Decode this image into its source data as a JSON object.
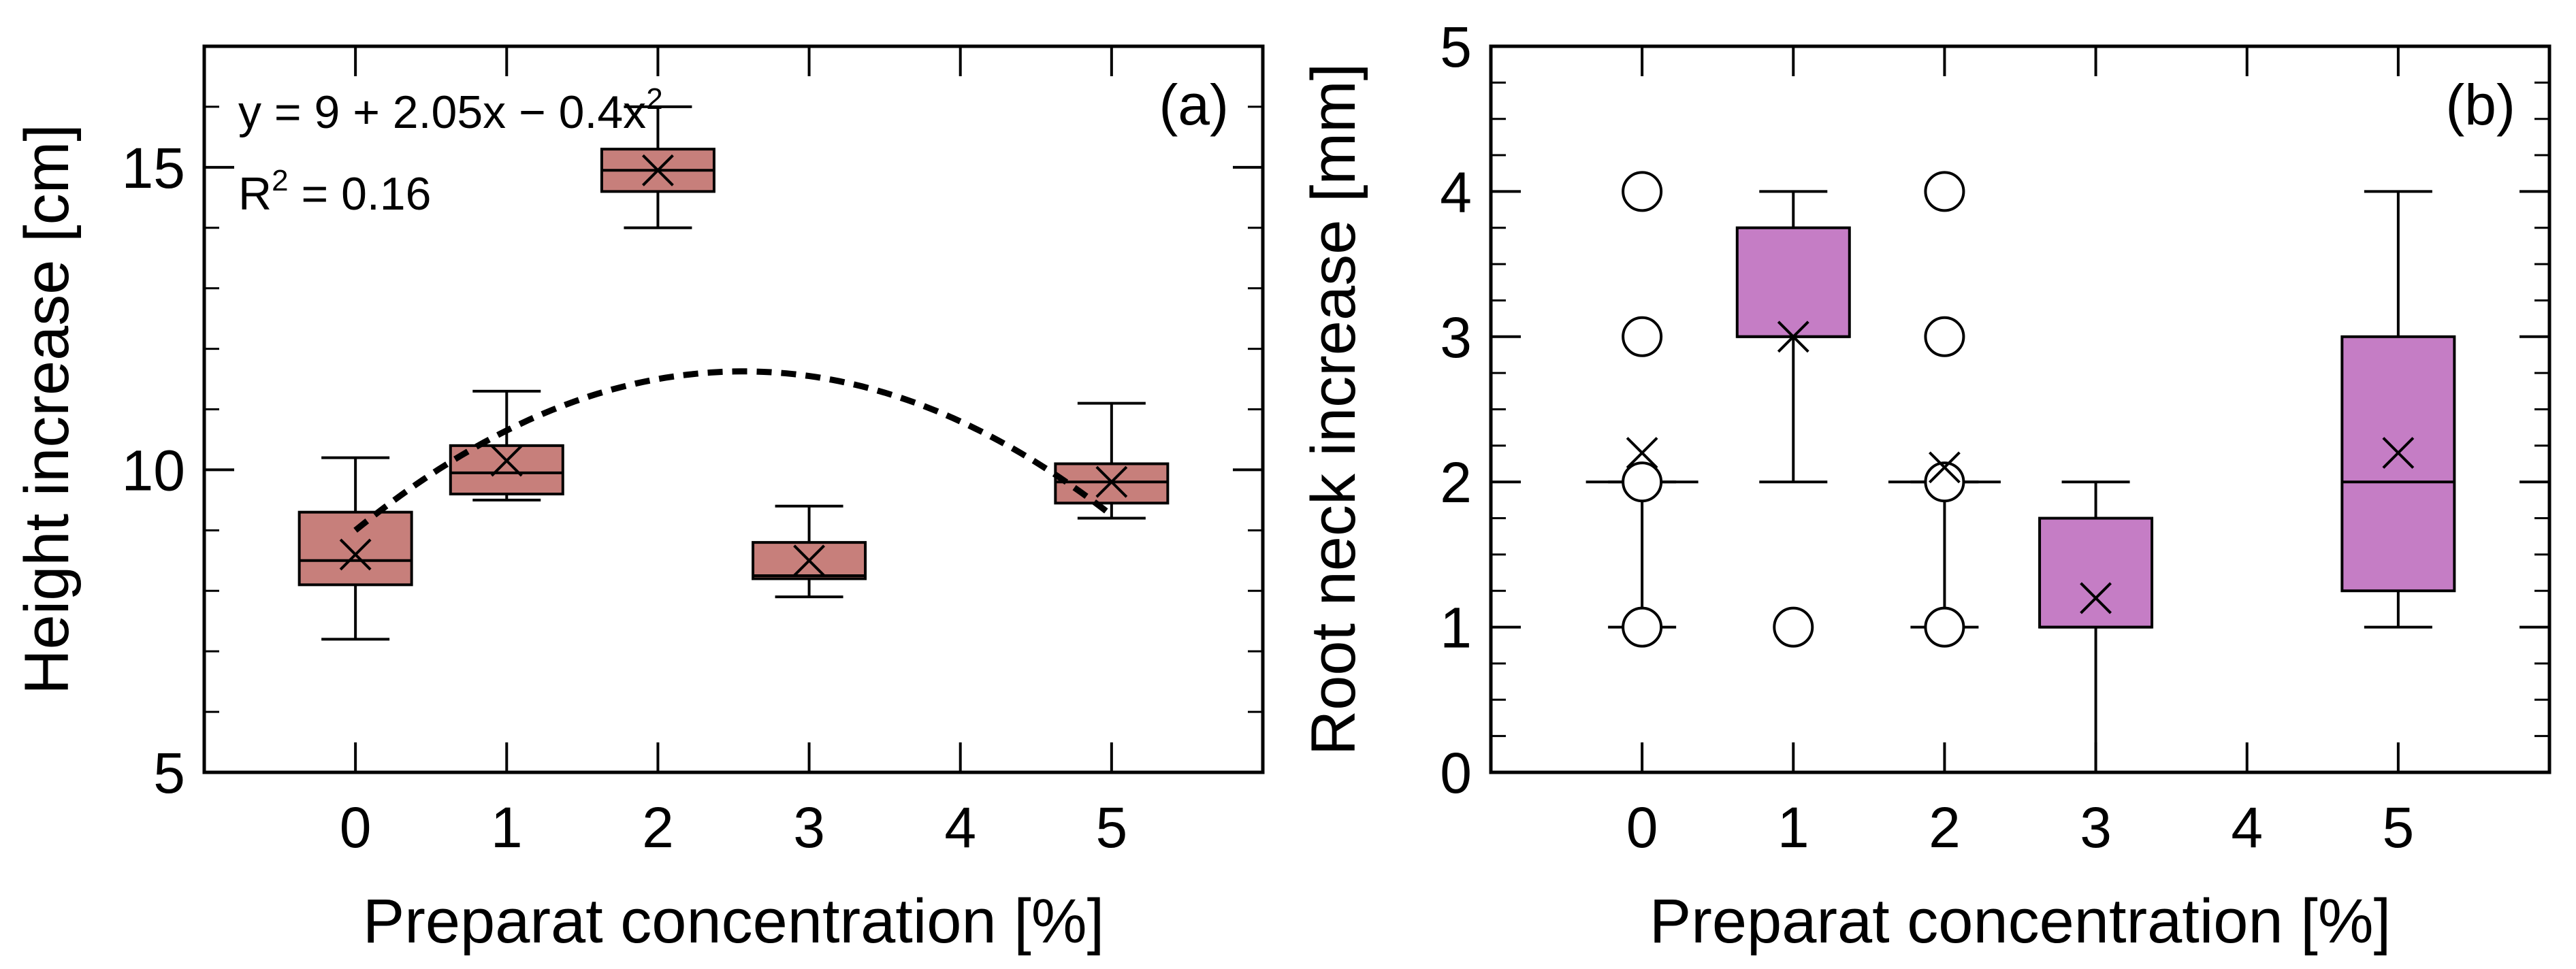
{
  "chart_data": [
    {
      "type": "box",
      "panel_label": "(a)",
      "xlabel": "Preparat concentration [%]",
      "ylabel": "Height increase [cm]",
      "xlim": [
        -1,
        6
      ],
      "ylim": [
        5,
        17
      ],
      "x_ticks": [
        0,
        1,
        2,
        3,
        4,
        5
      ],
      "y_ticks": [
        5,
        10,
        15
      ],
      "box_color": "#c77f7b",
      "boxes": [
        {
          "x": 0,
          "whisker_low": 7.2,
          "q1": 8.1,
          "median": 8.5,
          "q3": 9.3,
          "whisker_high": 10.2,
          "mean": 8.6,
          "outliers": []
        },
        {
          "x": 1,
          "whisker_low": 9.5,
          "q1": 9.6,
          "median": 9.95,
          "q3": 10.4,
          "whisker_high": 11.3,
          "mean": 10.15,
          "outliers": []
        },
        {
          "x": 2,
          "whisker_low": 14.0,
          "q1": 14.6,
          "median": 14.95,
          "q3": 15.3,
          "whisker_high": 16.0,
          "mean": 14.95,
          "outliers": []
        },
        {
          "x": 3,
          "whisker_low": 7.9,
          "q1": 8.2,
          "median": 8.25,
          "q3": 8.8,
          "whisker_high": 9.4,
          "mean": 8.5,
          "outliers": []
        },
        {
          "x": 5,
          "whisker_low": 9.2,
          "q1": 9.45,
          "median": 9.8,
          "q3": 10.1,
          "whisker_high": 11.1,
          "mean": 9.8,
          "outliers": []
        }
      ],
      "fit": {
        "equation_text": "y = 9 + 2.05x − 0.4x",
        "equation_superscript": "2",
        "r2_prefix": "R",
        "r2_superscript": "2",
        "r2_suffix": " = 0.16",
        "coefficients": [
          9,
          2.05,
          -0.4
        ],
        "x_range": [
          0,
          5
        ]
      }
    },
    {
      "type": "box",
      "panel_label": "(b)",
      "xlabel": "Preparat concentration [%]",
      "ylabel": "Root neck increase [mm]",
      "xlim": [
        -1,
        6
      ],
      "ylim": [
        0,
        5
      ],
      "x_ticks": [
        0,
        1,
        2,
        3,
        4,
        5
      ],
      "y_ticks": [
        0,
        1,
        2,
        3,
        4,
        5
      ],
      "box_color": "#c57dc5",
      "boxes": [
        {
          "x": 0,
          "whisker_low": 1,
          "q1": 2,
          "median": 2,
          "q3": 2,
          "whisker_high": 2,
          "mean": 2.2,
          "outliers": [
            1,
            2,
            3,
            4
          ]
        },
        {
          "x": 1,
          "whisker_low": 2,
          "q1": 3,
          "median": 3,
          "q3": 3.75,
          "whisker_high": 4,
          "mean": 3,
          "outliers": [
            1
          ]
        },
        {
          "x": 2,
          "whisker_low": 1,
          "q1": 2,
          "median": 2,
          "q3": 2,
          "whisker_high": 2,
          "mean": 2.1,
          "outliers": [
            1,
            2,
            3,
            4
          ]
        },
        {
          "x": 3,
          "whisker_low": 0,
          "q1": 1,
          "median": 1,
          "q3": 1.75,
          "whisker_high": 2,
          "mean": 1.2,
          "outliers": []
        },
        {
          "x": 5,
          "whisker_low": 1,
          "q1": 1.25,
          "median": 2,
          "q3": 3,
          "whisker_high": 4,
          "mean": 2.2,
          "outliers": []
        }
      ]
    }
  ]
}
